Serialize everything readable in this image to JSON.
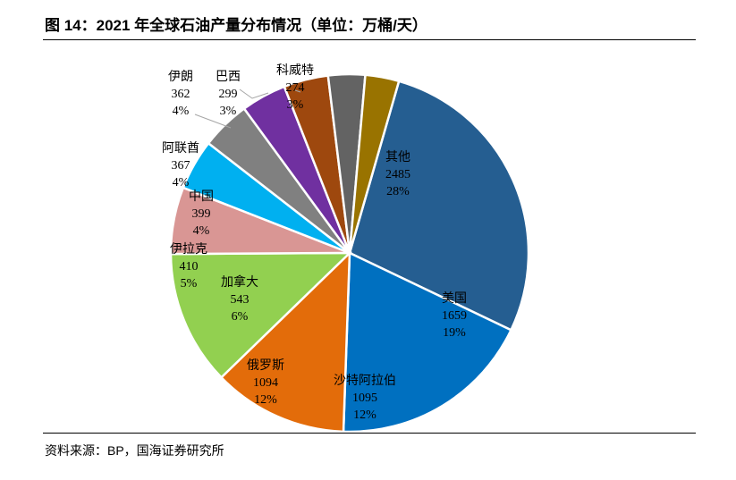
{
  "title": "图 14：2021 年全球石油产量分布情况（单位：万桶/天）",
  "source": "资料来源：BP，国海证券研究所",
  "chart_data": {
    "type": "pie",
    "title": "2021 年全球石油产量分布情况",
    "unit": "万桶/天",
    "slices": [
      {
        "name": "其他",
        "value": 2485,
        "percent": "28%",
        "color": "#255E91"
      },
      {
        "name": "美国",
        "value": 1659,
        "percent": "19%",
        "color": "#0070C0"
      },
      {
        "name": "沙特阿拉伯",
        "value": 1095,
        "percent": "12%",
        "color": "#E36C0A"
      },
      {
        "name": "俄罗斯",
        "value": 1094,
        "percent": "12%",
        "color": "#92D050"
      },
      {
        "name": "加拿大",
        "value": 543,
        "percent": "6%",
        "color": "#D99694"
      },
      {
        "name": "伊拉克",
        "value": 410,
        "percent": "5%",
        "color": "#00B0F0"
      },
      {
        "name": "中国",
        "value": 399,
        "percent": "4%",
        "color": "#808080"
      },
      {
        "name": "阿联酋",
        "value": 367,
        "percent": "4%",
        "color": "#7030A0"
      },
      {
        "name": "伊朗",
        "value": 362,
        "percent": "4%",
        "color": "#9E480E"
      },
      {
        "name": "巴西",
        "value": 299,
        "percent": "3%",
        "color": "#636363"
      },
      {
        "name": "科威特",
        "value": 274,
        "percent": "3%",
        "color": "#997300"
      }
    ]
  }
}
